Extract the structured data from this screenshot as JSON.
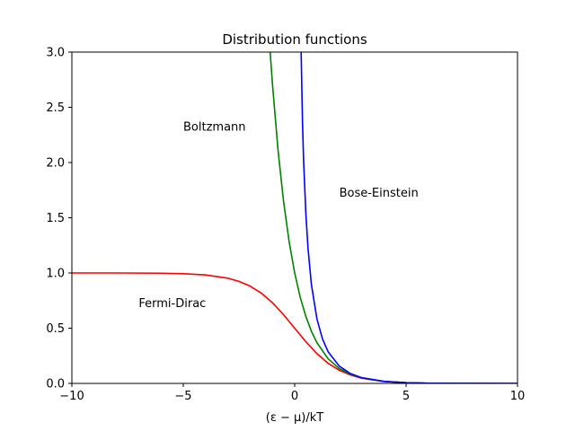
{
  "chart_data": {
    "type": "line",
    "title": "Distribution functions",
    "xlabel": "(ε − μ)/kT",
    "ylabel": "",
    "xlim": [
      -10,
      10
    ],
    "ylim": [
      0,
      3.0
    ],
    "x_ticks": [
      -10,
      -5,
      0,
      5,
      10
    ],
    "x_tick_labels": [
      "−10",
      "−5",
      "0",
      "5",
      "10"
    ],
    "y_ticks": [
      0.0,
      0.5,
      1.0,
      1.5,
      2.0,
      2.5,
      3.0
    ],
    "y_tick_labels": [
      "0.0",
      "0.5",
      "1.0",
      "1.5",
      "2.0",
      "2.5",
      "3.0"
    ],
    "grid": false,
    "legend": "none",
    "series": [
      {
        "color": "#ff0000",
        "points": [
          [
            -10,
            1.0
          ],
          [
            -8,
            1.0
          ],
          [
            -6,
            0.998
          ],
          [
            -5,
            0.993
          ],
          [
            -4,
            0.982
          ],
          [
            -3,
            0.953
          ],
          [
            -2.5,
            0.924
          ],
          [
            -2,
            0.881
          ],
          [
            -1.5,
            0.818
          ],
          [
            -1,
            0.731
          ],
          [
            -0.5,
            0.622
          ],
          [
            0,
            0.5
          ],
          [
            0.5,
            0.378
          ],
          [
            1,
            0.269
          ],
          [
            1.5,
            0.182
          ],
          [
            2,
            0.119
          ],
          [
            2.5,
            0.076
          ],
          [
            3,
            0.047
          ],
          [
            4,
            0.018
          ],
          [
            5,
            0.007
          ],
          [
            6,
            0.002
          ],
          [
            8,
            0.0003
          ],
          [
            10,
            0.0
          ]
        ]
      },
      {
        "color": "#008000",
        "points": [
          [
            -1.1,
            3.0
          ],
          [
            -1,
            2.718
          ],
          [
            -0.75,
            2.117
          ],
          [
            -0.5,
            1.649
          ],
          [
            -0.25,
            1.284
          ],
          [
            0,
            1.0
          ],
          [
            0.25,
            0.779
          ],
          [
            0.5,
            0.607
          ],
          [
            0.75,
            0.472
          ],
          [
            1,
            0.368
          ],
          [
            1.5,
            0.223
          ],
          [
            2,
            0.135
          ],
          [
            2.5,
            0.082
          ],
          [
            3,
            0.05
          ],
          [
            4,
            0.018
          ],
          [
            5,
            0.007
          ],
          [
            6,
            0.002
          ],
          [
            8,
            0.0003
          ],
          [
            10,
            0.0
          ]
        ]
      },
      {
        "color": "#0000ff",
        "points": [
          [
            0.29,
            3.0
          ],
          [
            0.35,
            2.37
          ],
          [
            0.4,
            2.02
          ],
          [
            0.5,
            1.54
          ],
          [
            0.6,
            1.22
          ],
          [
            0.75,
            0.895
          ],
          [
            1,
            0.582
          ],
          [
            1.25,
            0.402
          ],
          [
            1.5,
            0.287
          ],
          [
            2,
            0.157
          ],
          [
            2.5,
            0.089
          ],
          [
            3,
            0.052
          ],
          [
            4,
            0.019
          ],
          [
            5,
            0.007
          ],
          [
            6,
            0.002
          ],
          [
            8,
            0.0003
          ],
          [
            10,
            0.0
          ]
        ]
      }
    ],
    "annotations": [
      {
        "text": "Boltzmann",
        "x": -5,
        "y": 2.33
      },
      {
        "text": "Bose-Einstein",
        "x": 2,
        "y": 1.73
      },
      {
        "text": "Fermi-Dirac",
        "x": -7,
        "y": 0.73
      }
    ]
  }
}
